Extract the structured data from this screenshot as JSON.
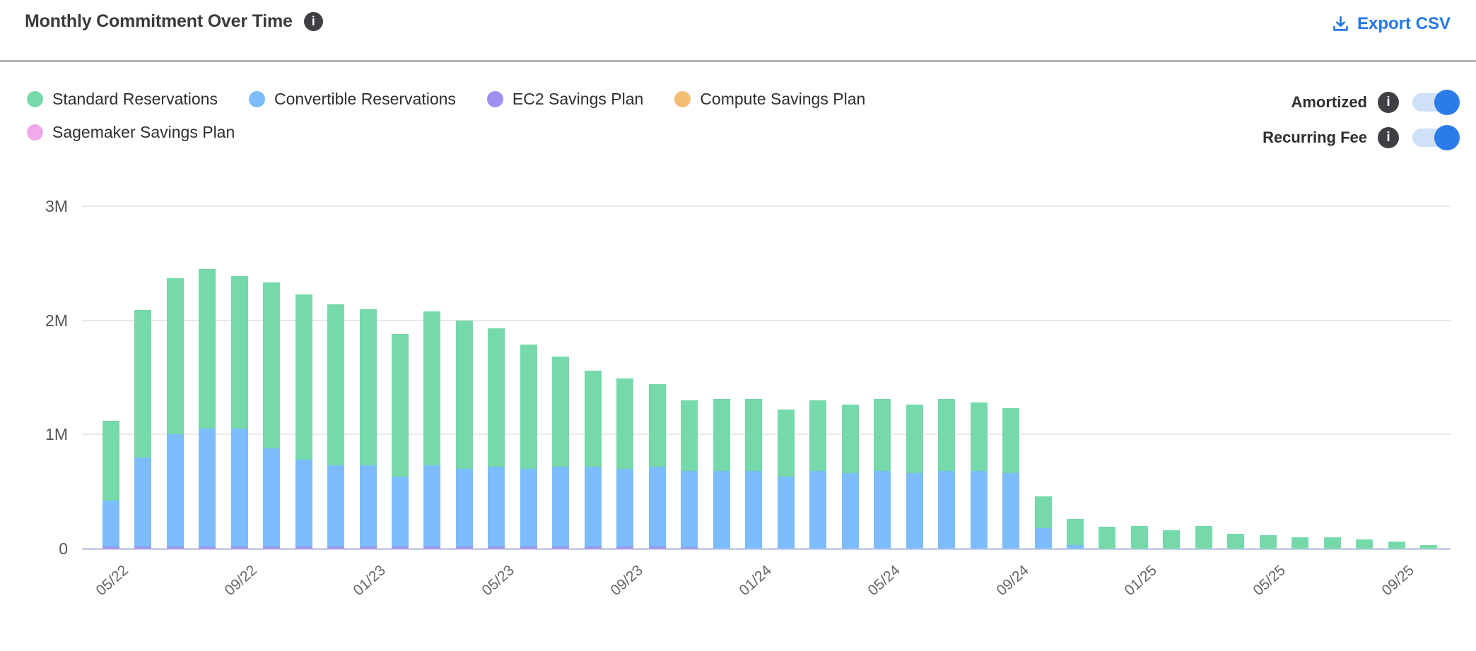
{
  "header": {
    "title": "Monthly Commitment Over Time",
    "export_label": "Export CSV"
  },
  "toggles": {
    "amortized": {
      "label": "Amortized",
      "enabled": true
    },
    "recurring_fee": {
      "label": "Recurring Fee",
      "enabled": true
    }
  },
  "colors": {
    "accent_blue": "#2478e8",
    "toggle_knob": "#2b7ce9",
    "toggle_track": "#cfe0f8",
    "gridline": "#e9e9e9",
    "axis_line": "#c9d1e8"
  },
  "chart_data": {
    "type": "bar",
    "stacked": true,
    "title": "Monthly Commitment Over Time",
    "unit": "millions USD",
    "ylabel": "",
    "xlabel": "",
    "ylim": [
      0,
      3
    ],
    "y_ticks": [
      "0",
      "1M",
      "2M",
      "3M"
    ],
    "grid": true,
    "legend_position": "top-left",
    "x_tick_every": 4,
    "x": [
      "05/22",
      "06/22",
      "07/22",
      "08/22",
      "09/22",
      "10/22",
      "11/22",
      "12/22",
      "01/23",
      "02/23",
      "03/23",
      "04/23",
      "05/23",
      "06/23",
      "07/23",
      "08/23",
      "09/23",
      "10/23",
      "11/23",
      "12/23",
      "01/24",
      "02/24",
      "03/24",
      "04/24",
      "05/24",
      "06/24",
      "07/24",
      "08/24",
      "09/24",
      "10/24",
      "11/24",
      "12/24",
      "01/25",
      "02/25",
      "03/25",
      "04/25",
      "05/25",
      "06/25",
      "07/25",
      "08/25",
      "09/25",
      "10/25"
    ],
    "series": [
      {
        "name": "Standard Reservations",
        "color": "#76d9a9",
        "values": [
          0.7,
          1.29,
          1.37,
          1.4,
          1.34,
          1.45,
          1.45,
          1.41,
          1.37,
          1.25,
          1.35,
          1.3,
          1.21,
          1.09,
          0.96,
          0.84,
          0.79,
          0.72,
          0.62,
          0.63,
          0.63,
          0.59,
          0.62,
          0.6,
          0.63,
          0.6,
          0.63,
          0.6,
          0.57,
          0.28,
          0.23,
          0.19,
          0.2,
          0.16,
          0.2,
          0.13,
          0.12,
          0.1,
          0.1,
          0.08,
          0.06,
          0.03
        ]
      },
      {
        "name": "Convertible Reservations",
        "color": "#7cbcfa",
        "values": [
          0.4,
          0.78,
          0.98,
          1.03,
          1.03,
          0.86,
          0.76,
          0.71,
          0.71,
          0.61,
          0.71,
          0.68,
          0.7,
          0.68,
          0.7,
          0.7,
          0.68,
          0.7,
          0.67,
          0.68,
          0.68,
          0.63,
          0.68,
          0.66,
          0.68,
          0.66,
          0.68,
          0.68,
          0.66,
          0.18,
          0.03,
          0,
          0,
          0,
          0,
          0,
          0,
          0,
          0,
          0,
          0,
          0
        ]
      },
      {
        "name": "EC2 Savings Plan",
        "color": "#9f8ff1",
        "values": [
          0.02,
          0.02,
          0.02,
          0.02,
          0.02,
          0.02,
          0.02,
          0.02,
          0.02,
          0.02,
          0.02,
          0.02,
          0.02,
          0.02,
          0.02,
          0.02,
          0.02,
          0.02,
          0.01,
          0,
          0,
          0,
          0,
          0,
          0,
          0,
          0,
          0,
          0,
          0,
          0,
          0,
          0,
          0,
          0,
          0,
          0,
          0,
          0,
          0,
          0,
          0
        ]
      },
      {
        "name": "Compute Savings Plan",
        "color": "#f4be72",
        "values": [
          0,
          0,
          0,
          0,
          0,
          0,
          0,
          0,
          0,
          0,
          0,
          0,
          0,
          0,
          0,
          0,
          0,
          0,
          0,
          0,
          0,
          0,
          0,
          0,
          0,
          0,
          0,
          0,
          0,
          0,
          0,
          0,
          0,
          0,
          0,
          0,
          0,
          0,
          0,
          0,
          0,
          0
        ]
      },
      {
        "name": "Sagemaker Savings Plan",
        "color": "#f0a9eb",
        "values": [
          0,
          0,
          0,
          0,
          0,
          0,
          0,
          0,
          0,
          0,
          0,
          0,
          0,
          0,
          0,
          0,
          0,
          0,
          0,
          0,
          0,
          0,
          0,
          0,
          0,
          0,
          0,
          0,
          0,
          0,
          0,
          0,
          0,
          0,
          0,
          0,
          0,
          0,
          0,
          0,
          0,
          0
        ]
      }
    ]
  }
}
